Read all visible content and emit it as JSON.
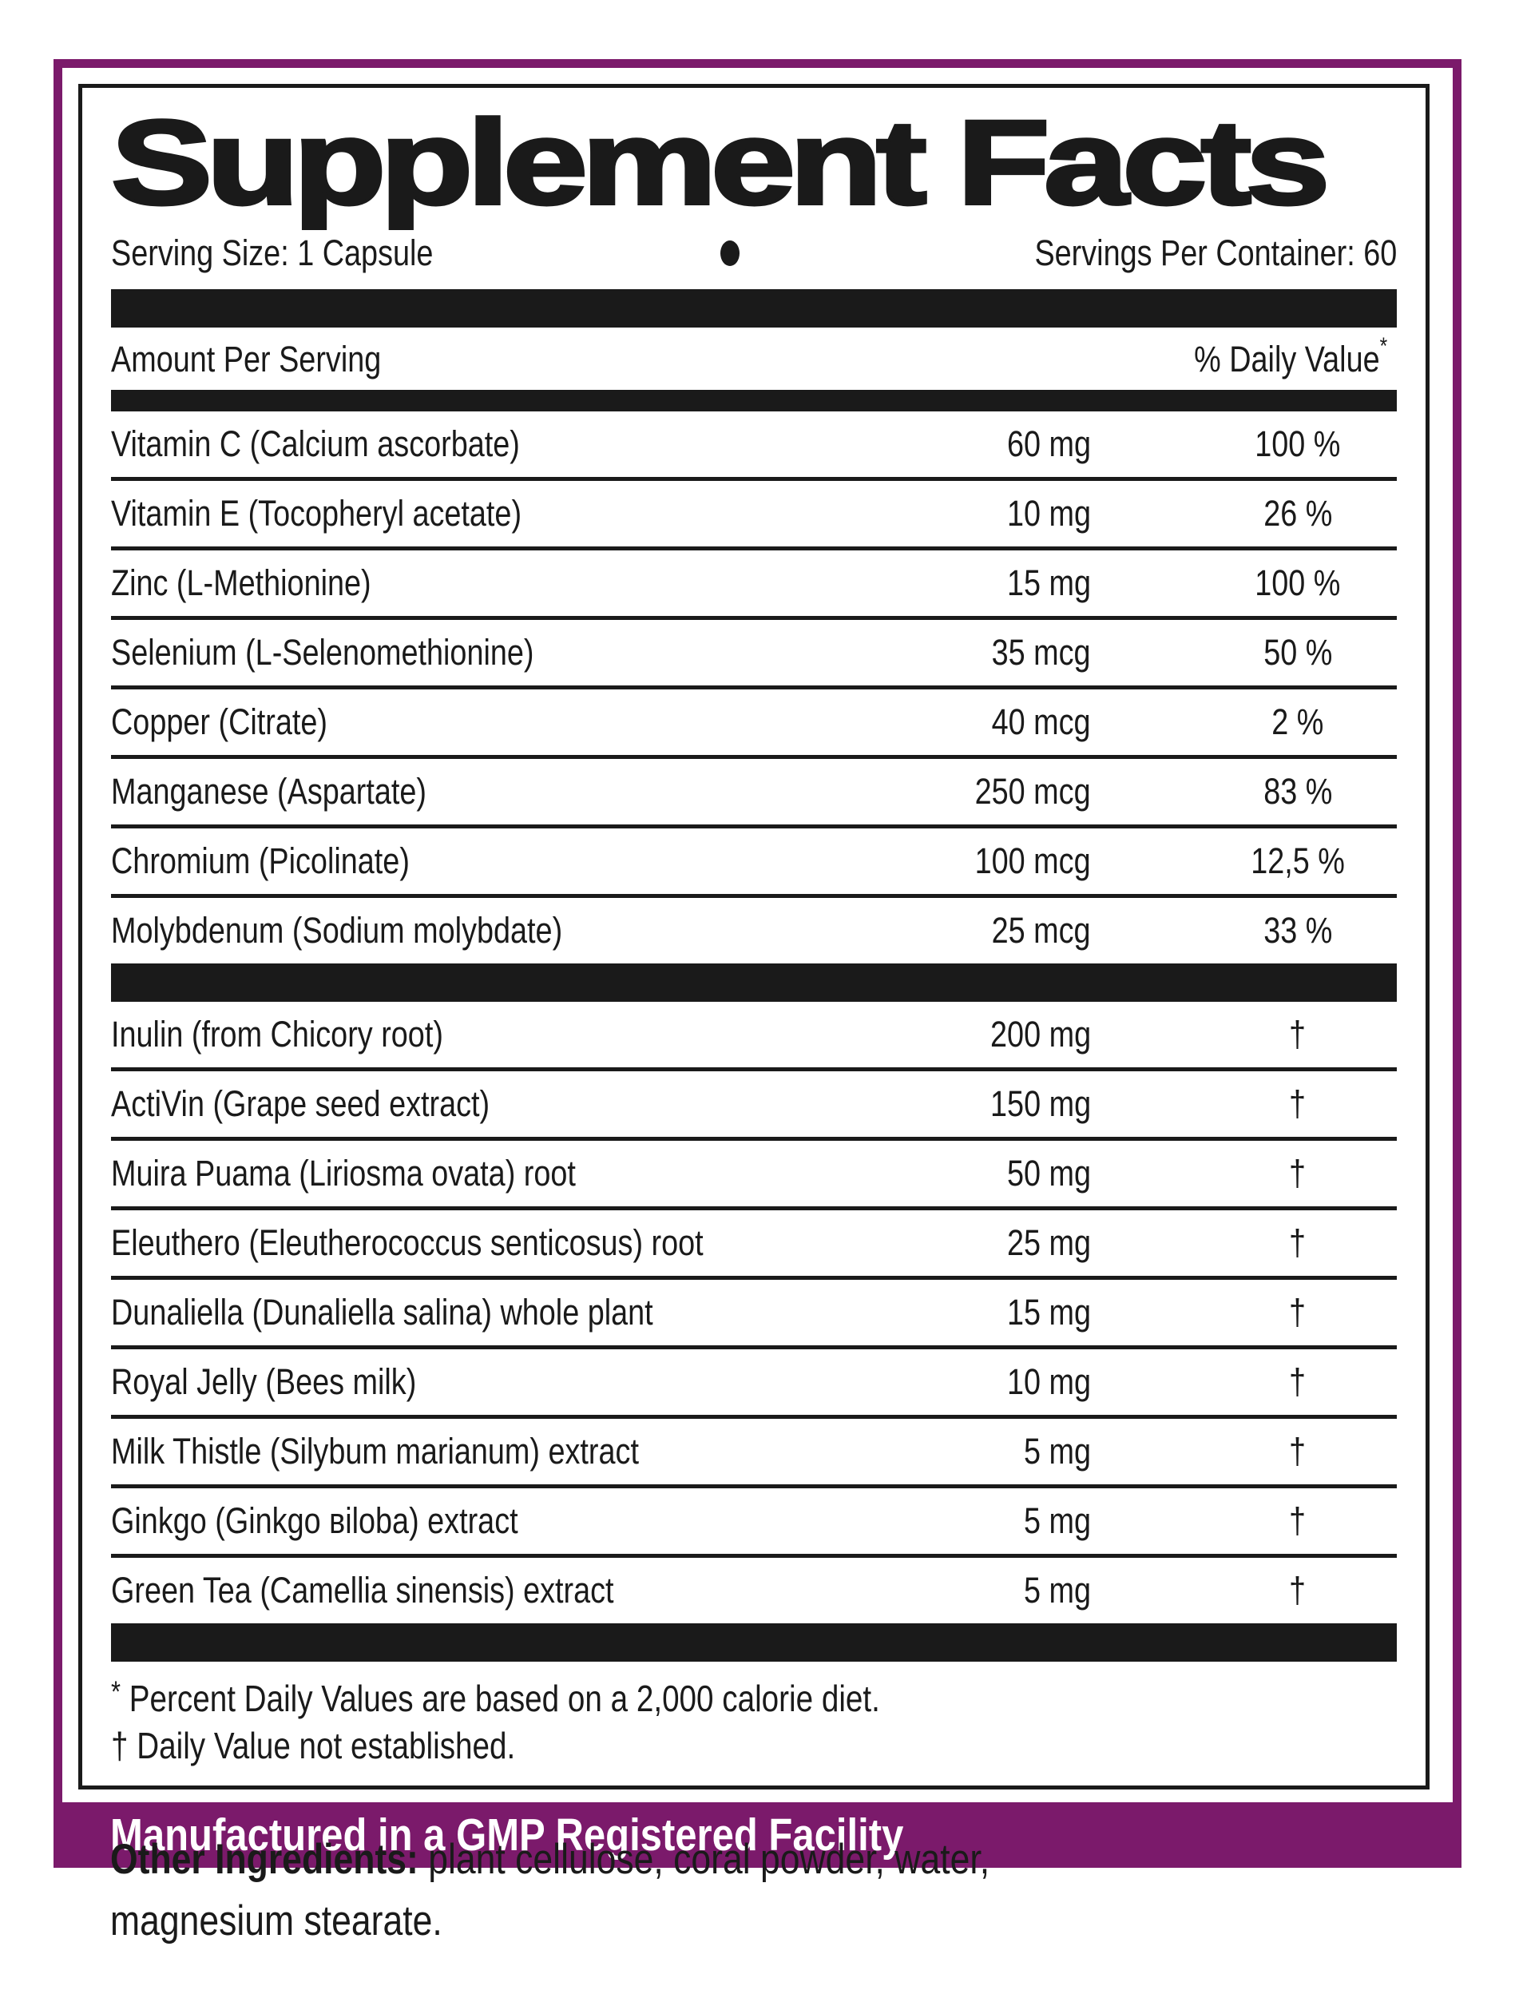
{
  "label": {
    "title": "Supplement Facts",
    "serving_size": "Serving Size: 1 Capsule",
    "servings_per_container": "Servings Per Container: 60",
    "separator_icon": "bullet-dot",
    "colors": {
      "accent_purple": "#7b1a6b",
      "ink_black": "#1a1a1a"
    },
    "table": {
      "amount_header": "Amount Per Serving",
      "dv_header": "% Daily Value",
      "dv_header_mark": "*",
      "nutrients": [
        {
          "name": "Vitamin C (Calcium ascorbate)",
          "amount": "60 mg",
          "dv": "100 %"
        },
        {
          "name": "Vitamin E (Tocopheryl acetate)",
          "amount": "10 mg",
          "dv": "26 %"
        },
        {
          "name": "Zinc (L-Methionine)",
          "amount": "15 mg",
          "dv": "100 %"
        },
        {
          "name": "Selenium (L-Selenomethionine)",
          "amount": "35 mcg",
          "dv": "50 %"
        },
        {
          "name": "Copper (Citrate)",
          "amount": "40 mcg",
          "dv": "2 %"
        },
        {
          "name": "Manganese (Aspartate)",
          "amount": "250 mcg",
          "dv": "83 %"
        },
        {
          "name": "Chromium (Picolinate)",
          "amount": "100 mcg",
          "dv": "12,5 %"
        },
        {
          "name": "Molybdenum (Sodium molybdate)",
          "amount": "25 mcg",
          "dv": "33 %"
        }
      ],
      "botanicals": [
        {
          "name": "Inulin (from Chicory root)",
          "amount": "200 mg",
          "dv": "†"
        },
        {
          "name": "ActiVin (Grape seed extract)",
          "amount": "150 mg",
          "dv": "†"
        },
        {
          "name": "Muira Puama (Liriosma ovata) root",
          "amount": "50 mg",
          "dv": "†"
        },
        {
          "name": "Eleuthero (Eleutherococcus senticosus) root",
          "amount": "25 mg",
          "dv": "†"
        },
        {
          "name": "Dunaliella (Dunaliella salina) whole plant",
          "amount": "15 mg",
          "dv": "†"
        },
        {
          "name": "Royal Jelly (Bees milk)",
          "amount": "10 mg",
          "dv": "†"
        },
        {
          "name": "Milk Thistle (Silybum marianum) extract",
          "amount": "5 mg",
          "dv": "†"
        },
        {
          "name": "Ginkgo (Ginkgo вiloba) extract",
          "amount": "5 mg",
          "dv": "†"
        },
        {
          "name": "Green Tea (Camellia sinensis) extract",
          "amount": "5 mg",
          "dv": "†"
        }
      ]
    },
    "footnotes": [
      {
        "mark": "*",
        "text": "Percent Daily Values are based on a 2,000 calorie diet."
      },
      {
        "mark": "†",
        "text": "Daily Value not established."
      }
    ],
    "banner": "Manufactured in a GMP Registered Facility"
  },
  "other_ingredients": {
    "label": "Other Ingredients:",
    "line1": " plant cellulose, coral powder, water,",
    "line2": "magnesium stearate."
  }
}
